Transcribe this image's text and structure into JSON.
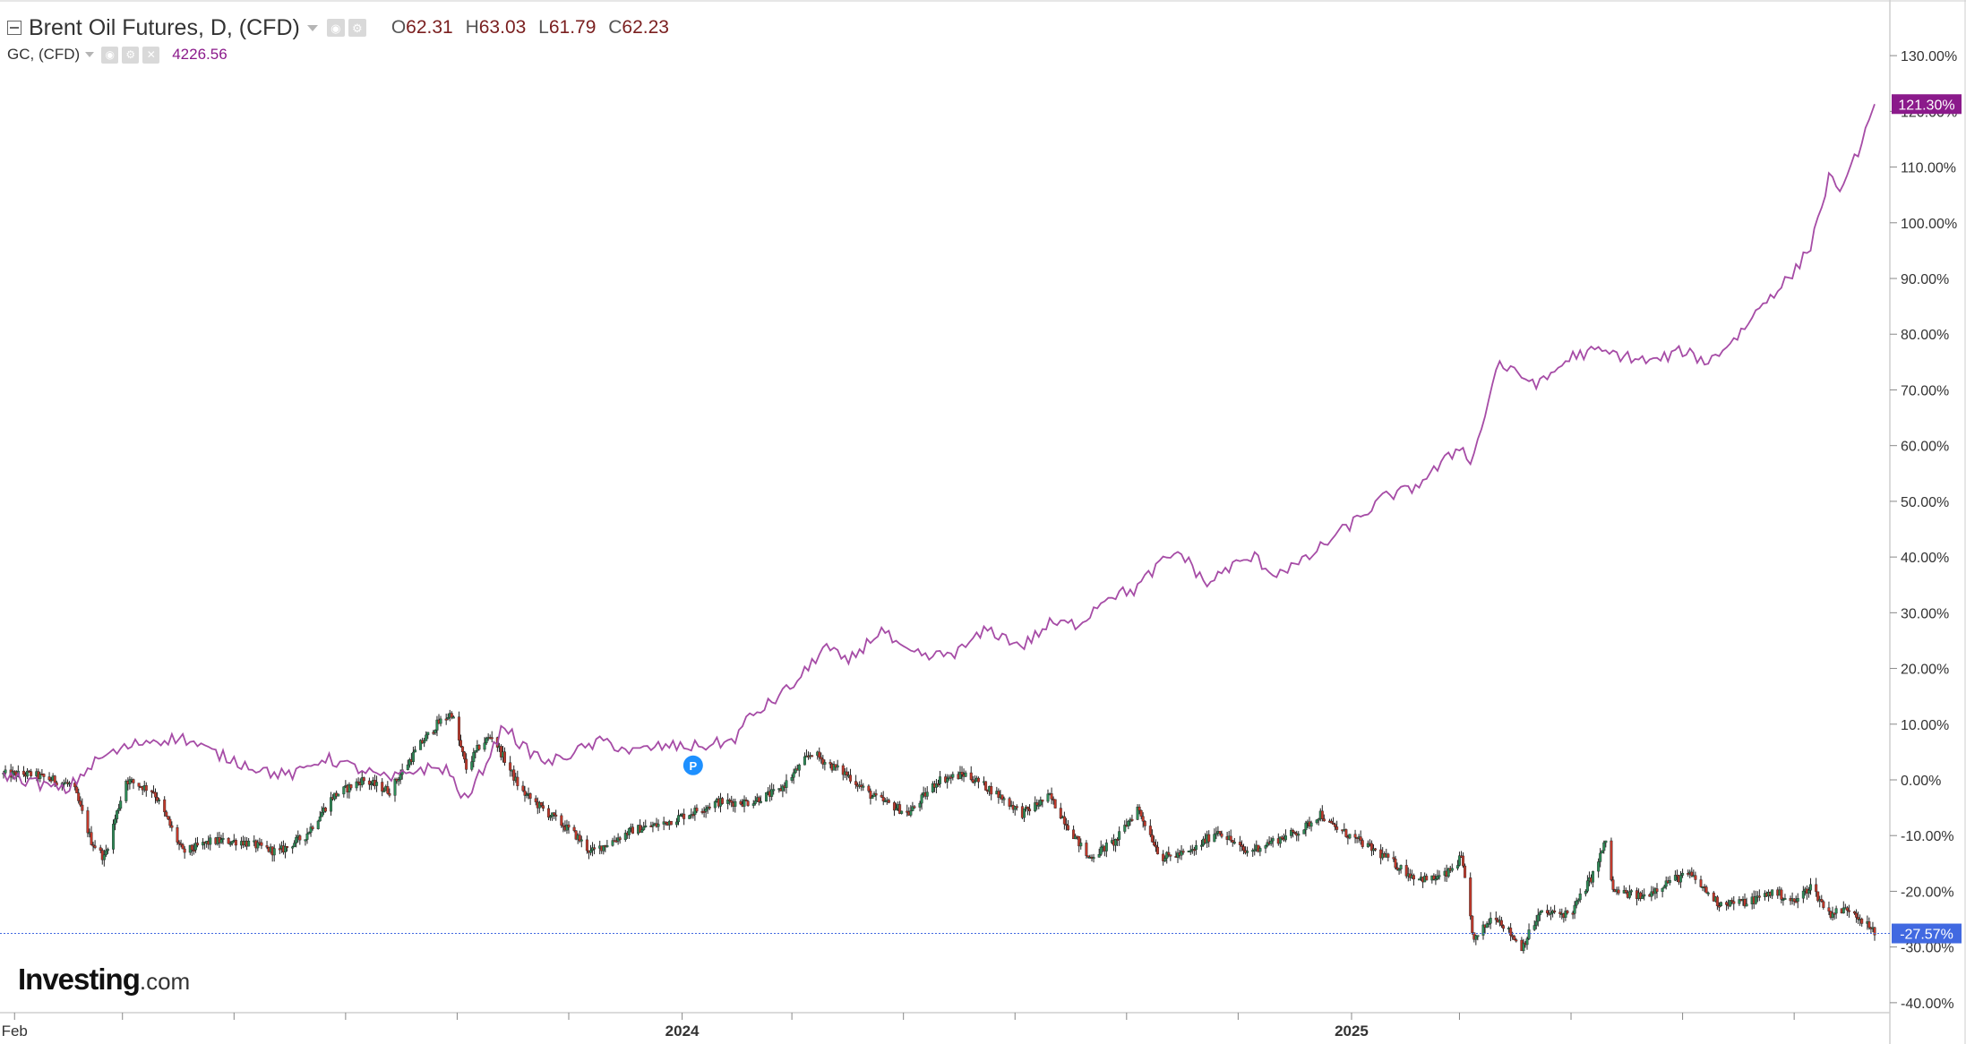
{
  "legend": {
    "primary": {
      "symbol": "Brent Oil Futures, D, (CFD)",
      "open_key": "O",
      "open": "62.31",
      "high_key": "H",
      "high": "63.03",
      "low_key": "L",
      "low": "61.79",
      "close_key": "C",
      "close": "62.23"
    },
    "secondary": {
      "symbol": "GC, (CFD)",
      "value": "4226.56"
    }
  },
  "icons": {
    "collapse": "collapse-square-icon",
    "caret": "chevron-down-icon",
    "visibility": "eye-icon",
    "settings": "gear-icon",
    "remove": "close-icon"
  },
  "logo": {
    "brand": "Investing",
    "suffix": ".com"
  },
  "colors": {
    "gold_line": "#a64ca6",
    "gold_tag": "#8b1a8b",
    "up_candle": "#2e8b57",
    "down_candle": "#c0392b",
    "last_tag": "#4169e1",
    "last_line": "#4169e1",
    "axis_text": "#333333",
    "grid_border": "#cfcfcf"
  },
  "chart_data": {
    "type": "line",
    "title": "",
    "xlabel": "",
    "ylabel": "",
    "y_unit": "% change",
    "ylim": [
      -41,
      132
    ],
    "y_ticks": [
      -40,
      -30,
      -20,
      -10,
      0,
      10,
      20,
      30,
      40,
      50,
      60,
      70,
      80,
      90,
      100,
      110,
      120,
      130
    ],
    "y_tick_labels": [
      "-40.00%",
      "-30.00%",
      "-20.00%",
      "-10.00%",
      "0.00%",
      "10.00%",
      "20.00%",
      "30.00%",
      "40.00%",
      "50.00%",
      "60.00%",
      "70.00%",
      "80.00%",
      "90.00%",
      "100.00%",
      "110.00%",
      "120.00%",
      "130.00%"
    ],
    "x_range": [
      "2023-01-26",
      "2025-11-14"
    ],
    "x_ticks": [
      {
        "date": "2023-02-01",
        "label": "Feb"
      },
      {
        "date": "2023-04-01",
        "label": ""
      },
      {
        "date": "2023-06-01",
        "label": ""
      },
      {
        "date": "2023-08-01",
        "label": ""
      },
      {
        "date": "2023-10-01",
        "label": ""
      },
      {
        "date": "2023-12-01",
        "label": ""
      },
      {
        "date": "2024-02-01",
        "label": "2024"
      },
      {
        "date": "2024-04-01",
        "label": ""
      },
      {
        "date": "2024-06-01",
        "label": ""
      },
      {
        "date": "2024-08-01",
        "label": ""
      },
      {
        "date": "2024-10-01",
        "label": ""
      },
      {
        "date": "2024-12-01",
        "label": ""
      },
      {
        "date": "2025-02-01",
        "label": "2025"
      },
      {
        "date": "2025-04-01",
        "label": ""
      },
      {
        "date": "2025-06-01",
        "label": ""
      },
      {
        "date": "2025-08-01",
        "label": ""
      },
      {
        "date": "2025-10-01",
        "label": ""
      }
    ],
    "series": [
      {
        "name": "GC, (CFD)",
        "style": "line",
        "last_label": "121.30%",
        "points": [
          [
            "2023-01-26",
            1
          ],
          [
            "2023-03-01",
            -2
          ],
          [
            "2023-03-13",
            2
          ],
          [
            "2023-03-20",
            4
          ],
          [
            "2023-04-05",
            6
          ],
          [
            "2023-04-13",
            7
          ],
          [
            "2023-05-04",
            7.5
          ],
          [
            "2023-05-20",
            5
          ],
          [
            "2023-06-05",
            3
          ],
          [
            "2023-06-25",
            1
          ],
          [
            "2023-07-05",
            1
          ],
          [
            "2023-07-20",
            4
          ],
          [
            "2023-08-08",
            2
          ],
          [
            "2023-08-25",
            0
          ],
          [
            "2023-09-10",
            2
          ],
          [
            "2023-09-25",
            2
          ],
          [
            "2023-10-06",
            -4
          ],
          [
            "2023-10-15",
            2
          ],
          [
            "2023-10-27",
            10
          ],
          [
            "2023-11-05",
            6
          ],
          [
            "2023-11-20",
            3
          ],
          [
            "2023-12-04",
            5
          ],
          [
            "2023-12-20",
            7
          ],
          [
            "2024-01-05",
            5
          ],
          [
            "2024-01-20",
            6
          ],
          [
            "2024-02-10",
            6
          ],
          [
            "2024-02-29",
            7
          ],
          [
            "2024-03-08",
            11
          ],
          [
            "2024-03-21",
            14
          ],
          [
            "2024-04-05",
            18
          ],
          [
            "2024-04-12",
            21
          ],
          [
            "2024-04-19",
            24
          ],
          [
            "2024-05-01",
            21
          ],
          [
            "2024-05-20",
            27
          ],
          [
            "2024-06-01",
            23
          ],
          [
            "2024-06-15",
            22
          ],
          [
            "2024-07-01",
            23
          ],
          [
            "2024-07-17",
            27
          ],
          [
            "2024-08-05",
            24
          ],
          [
            "2024-08-20",
            28
          ],
          [
            "2024-09-05",
            28
          ],
          [
            "2024-09-20",
            33
          ],
          [
            "2024-10-05",
            34
          ],
          [
            "2024-10-20",
            39
          ],
          [
            "2024-10-30",
            41
          ],
          [
            "2024-11-14",
            35
          ],
          [
            "2024-11-25",
            38
          ],
          [
            "2024-12-10",
            40
          ],
          [
            "2024-12-20",
            37
          ],
          [
            "2025-01-05",
            39
          ],
          [
            "2025-01-20",
            43
          ],
          [
            "2025-02-05",
            47
          ],
          [
            "2025-02-20",
            51
          ],
          [
            "2025-03-05",
            52
          ],
          [
            "2025-03-20",
            56
          ],
          [
            "2025-04-02",
            60
          ],
          [
            "2025-04-08",
            57
          ],
          [
            "2025-04-16",
            67
          ],
          [
            "2025-04-22",
            75
          ],
          [
            "2025-05-01",
            73
          ],
          [
            "2025-05-15",
            71
          ],
          [
            "2025-06-01",
            76
          ],
          [
            "2025-06-15",
            77
          ],
          [
            "2025-07-01",
            76
          ],
          [
            "2025-07-15",
            75
          ],
          [
            "2025-08-01",
            77
          ],
          [
            "2025-08-15",
            75
          ],
          [
            "2025-09-01",
            80
          ],
          [
            "2025-09-15",
            86
          ],
          [
            "2025-10-01",
            91
          ],
          [
            "2025-10-10",
            96
          ],
          [
            "2025-10-20",
            108
          ],
          [
            "2025-10-28",
            106
          ],
          [
            "2025-11-05",
            113
          ],
          [
            "2025-11-14",
            121.3
          ]
        ]
      },
      {
        "name": "Brent Oil Futures, D, (CFD)",
        "style": "candlestick",
        "last_label": "-27.57%",
        "points": [
          [
            "2023-01-26",
            1
          ],
          [
            "2023-02-10",
            1
          ],
          [
            "2023-02-22",
            0
          ],
          [
            "2023-03-05",
            -1
          ],
          [
            "2023-03-15",
            -11
          ],
          [
            "2023-03-22",
            -14
          ],
          [
            "2023-04-03",
            0
          ],
          [
            "2023-04-18",
            -2
          ],
          [
            "2023-05-04",
            -13
          ],
          [
            "2023-05-20",
            -11
          ],
          [
            "2023-06-05",
            -11
          ],
          [
            "2023-06-25",
            -13
          ],
          [
            "2023-07-10",
            -10
          ],
          [
            "2023-07-25",
            -3
          ],
          [
            "2023-08-10",
            0
          ],
          [
            "2023-08-25",
            -2
          ],
          [
            "2023-09-10",
            6
          ],
          [
            "2023-09-20",
            10
          ],
          [
            "2023-09-28",
            12
          ],
          [
            "2023-10-06",
            2
          ],
          [
            "2023-10-13",
            6
          ],
          [
            "2023-10-20",
            8
          ],
          [
            "2023-11-05",
            -2
          ],
          [
            "2023-11-16",
            -5
          ],
          [
            "2023-12-05",
            -10
          ],
          [
            "2023-12-13",
            -13
          ],
          [
            "2024-01-05",
            -9
          ],
          [
            "2024-01-20",
            -8
          ],
          [
            "2024-02-05",
            -6
          ],
          [
            "2024-02-20",
            -4
          ],
          [
            "2024-03-08",
            -4
          ],
          [
            "2024-03-25",
            -2
          ],
          [
            "2024-04-12",
            5
          ],
          [
            "2024-04-20",
            3
          ],
          [
            "2024-05-01",
            1
          ],
          [
            "2024-05-15",
            -3
          ],
          [
            "2024-06-04",
            -6
          ],
          [
            "2024-06-20",
            0
          ],
          [
            "2024-07-05",
            1
          ],
          [
            "2024-07-20",
            -2
          ],
          [
            "2024-08-05",
            -6
          ],
          [
            "2024-08-20",
            -3
          ],
          [
            "2024-09-10",
            -14
          ],
          [
            "2024-09-25",
            -11
          ],
          [
            "2024-10-07",
            -5
          ],
          [
            "2024-10-20",
            -14
          ],
          [
            "2024-11-05",
            -13
          ],
          [
            "2024-11-20",
            -9
          ],
          [
            "2024-12-05",
            -13
          ],
          [
            "2024-12-20",
            -11
          ],
          [
            "2025-01-05",
            -9
          ],
          [
            "2025-01-15",
            -6
          ],
          [
            "2025-01-20",
            -8
          ],
          [
            "2025-02-05",
            -11
          ],
          [
            "2025-02-20",
            -14
          ],
          [
            "2025-03-05",
            -17
          ],
          [
            "2025-03-15",
            -18
          ],
          [
            "2025-03-25",
            -17
          ],
          [
            "2025-04-02",
            -14
          ],
          [
            "2025-04-09",
            -29
          ],
          [
            "2025-04-20",
            -24
          ],
          [
            "2025-05-05",
            -30
          ],
          [
            "2025-05-15",
            -24
          ],
          [
            "2025-06-01",
            -24
          ],
          [
            "2025-06-13",
            -17
          ],
          [
            "2025-06-20",
            -11
          ],
          [
            "2025-06-24",
            -20
          ],
          [
            "2025-07-10",
            -21
          ],
          [
            "2025-07-25",
            -18
          ],
          [
            "2025-08-05",
            -17
          ],
          [
            "2025-08-20",
            -22
          ],
          [
            "2025-09-05",
            -22
          ],
          [
            "2025-09-20",
            -20
          ],
          [
            "2025-10-01",
            -22
          ],
          [
            "2025-10-10",
            -19
          ],
          [
            "2025-10-20",
            -24
          ],
          [
            "2025-11-01",
            -23
          ],
          [
            "2025-11-14",
            -27.57
          ]
        ]
      }
    ],
    "markers": [
      {
        "date": "2024-02-07",
        "value": 1,
        "label": "P"
      }
    ],
    "grid": false,
    "legend": "top-left"
  }
}
